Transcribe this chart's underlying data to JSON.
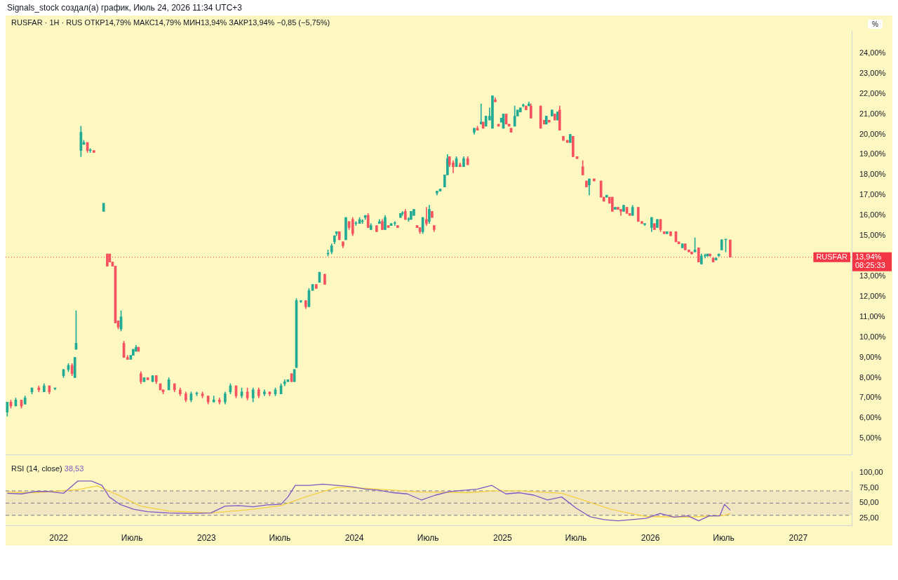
{
  "chart_data": [
    {
      "type": "candlestick",
      "title": "RUSFAR · 1H · RUS ОТКР14,79% МАКС14,79% МИН13,94% ЗАКР13,94% −0,85 (−5,75%)",
      "ylabel": "%",
      "annotations": [
        "Signals_stock создал(а) график, Июль 24, 2026 11:34 UTC+3",
        "RUSFAR",
        "08:25:33"
      ],
      "x": [
        "2021-08-27",
        "2021-09-05",
        "2021-09-17",
        "2021-10-01",
        "2021-10-10",
        "2021-10-27",
        "2021-11-13",
        "2021-11-26",
        "2021-12-09",
        "2021-12-23",
        "2022-01-13",
        "2022-01-25",
        "2022-02-03",
        "2022-02-10",
        "2022-02-13",
        "2022-02-25",
        "2022-03-04",
        "2022-03-13",
        "2022-03-20",
        "2022-03-29",
        "2022-04-22",
        "2022-05-01",
        "2022-05-07",
        "2022-05-14",
        "2022-05-21",
        "2022-05-28",
        "2022-06-04",
        "2022-06-11",
        "2022-06-20",
        "2022-06-28",
        "2022-07-04",
        "2022-07-11",
        "2022-07-17",
        "2022-07-23",
        "2022-07-31",
        "2022-08-09",
        "2022-08-21",
        "2022-08-30",
        "2022-09-09",
        "2022-09-16",
        "2022-09-30",
        "2022-10-14",
        "2022-10-28",
        "2022-11-11",
        "2022-11-24",
        "2022-12-08",
        "2022-12-22",
        "2023-01-05",
        "2023-01-19",
        "2023-02-02",
        "2023-02-16",
        "2023-03-01",
        "2023-03-15",
        "2023-03-29",
        "2023-04-12",
        "2023-04-26",
        "2023-05-10",
        "2023-05-24",
        "2023-06-06",
        "2023-06-20",
        "2023-07-04",
        "2023-07-13",
        "2023-07-21",
        "2023-07-30",
        "2023-08-06",
        "2023-08-11",
        "2023-08-22",
        "2023-09-03",
        "2023-09-11",
        "2023-09-20",
        "2023-09-29",
        "2023-10-07",
        "2023-10-20",
        "2023-10-28",
        "2023-11-06",
        "2023-11-13",
        "2023-11-18",
        "2023-11-25",
        "2023-12-04",
        "2023-12-11",
        "2023-12-19",
        "2023-12-28",
        "2024-01-05",
        "2024-01-14",
        "2024-01-21",
        "2024-01-28",
        "2024-02-04",
        "2024-02-11",
        "2024-02-25",
        "2024-03-03",
        "2024-03-10",
        "2024-03-17",
        "2024-03-25",
        "2024-04-01",
        "2024-04-10",
        "2024-04-17",
        "2024-04-24",
        "2024-04-29",
        "2024-05-06",
        "2024-05-14",
        "2024-05-20",
        "2024-05-27",
        "2024-06-04",
        "2024-06-11",
        "2024-06-18",
        "2024-06-27",
        "2024-07-04",
        "2024-07-11",
        "2024-07-16",
        "2024-07-23",
        "2024-07-31",
        "2024-08-11",
        "2024-08-18",
        "2024-08-23",
        "2024-09-01",
        "2024-09-09",
        "2024-09-18",
        "2024-09-27",
        "2024-10-07",
        "2024-10-23",
        "2024-10-31",
        "2024-11-09",
        "2024-11-14",
        "2024-11-21",
        "2024-11-30",
        "2024-12-07",
        "2024-12-14",
        "2024-12-22",
        "2024-12-29",
        "2025-01-03",
        "2025-01-10",
        "2025-01-17",
        "2025-01-22",
        "2025-01-31",
        "2025-02-07",
        "2025-02-14",
        "2025-02-21",
        "2025-02-28",
        "2025-03-07",
        "2025-03-12",
        "2025-04-05",
        "2025-04-14",
        "2025-04-19",
        "2025-04-26",
        "2025-05-03",
        "2025-05-10",
        "2025-05-17",
        "2025-05-22",
        "2025-05-31",
        "2025-06-10",
        "2025-06-17",
        "2025-06-24",
        "2025-07-04",
        "2025-07-18",
        "2025-07-27",
        "2025-08-03",
        "2025-08-15",
        "2025-09-01",
        "2025-09-08",
        "2025-09-15",
        "2025-09-22",
        "2025-09-29",
        "2025-10-06",
        "2025-10-13",
        "2025-10-20",
        "2025-10-27",
        "2025-11-04",
        "2025-11-11",
        "2025-11-18",
        "2025-12-02",
        "2025-12-11",
        "2025-12-18",
        "2026-01-04",
        "2026-01-11",
        "2026-01-18",
        "2026-01-26",
        "2026-02-04",
        "2026-02-11",
        "2026-02-20",
        "2026-03-05",
        "2026-03-12",
        "2026-03-21",
        "2026-03-28",
        "2026-04-06",
        "2026-04-13",
        "2026-04-21",
        "2026-04-30",
        "2026-05-07",
        "2026-05-16",
        "2026-05-22",
        "2026-05-28",
        "2026-06-05",
        "2026-06-12",
        "2026-06-19",
        "2026-06-26",
        "2026-07-06",
        "2026-07-17"
      ],
      "ohlc": [
        [
          6.3,
          6.8,
          6.1,
          6.8
        ],
        [
          6.8,
          6.9,
          6.5,
          6.6
        ],
        [
          6.6,
          7.0,
          6.6,
          6.9
        ],
        [
          6.9,
          6.9,
          6.5,
          6.6
        ],
        [
          6.7,
          7.1,
          6.7,
          7.0
        ],
        [
          7.3,
          7.5,
          7.2,
          7.5
        ],
        [
          7.5,
          7.6,
          7.3,
          7.4
        ],
        [
          7.3,
          7.7,
          7.3,
          7.6
        ],
        [
          7.6,
          7.6,
          7.2,
          7.3
        ],
        [
          7.45,
          7.5,
          7.4,
          7.5
        ],
        [
          8.1,
          8.4,
          8.0,
          8.4
        ],
        [
          8.4,
          8.7,
          8.3,
          8.6
        ],
        [
          8.6,
          8.7,
          8.1,
          8.2
        ],
        [
          8.0,
          9.0,
          8.0,
          9.0
        ],
        [
          9.4,
          11.3,
          9.4,
          9.7
        ],
        [
          19.2,
          20.4,
          18.9,
          20.1
        ],
        [
          19.5,
          19.7,
          19.5,
          19.6
        ],
        [
          19.6,
          19.6,
          19.1,
          19.2
        ],
        [
          19.2,
          19.3,
          19.1,
          19.2
        ],
        [
          19.2,
          19.2,
          19.1,
          19.1
        ],
        [
          16.2,
          16.6,
          16.2,
          16.6
        ],
        [
          14.1,
          14.1,
          13.5,
          13.5
        ],
        [
          14.1,
          14.1,
          13.7,
          13.7
        ],
        [
          13.7,
          13.7,
          13.5,
          13.5
        ],
        [
          13.5,
          13.5,
          10.7,
          10.7
        ],
        [
          10.8,
          10.8,
          10.4,
          10.5
        ],
        [
          10.4,
          11.3,
          10.3,
          11.0
        ],
        [
          9.7,
          9.8,
          9.0,
          9.0
        ],
        [
          9.0,
          9.1,
          8.9,
          8.9
        ],
        [
          8.9,
          9.1,
          8.9,
          9.1
        ],
        [
          9.1,
          9.4,
          9.1,
          9.4
        ],
        [
          9.3,
          9.6,
          9.3,
          9.5
        ],
        [
          9.5,
          9.5,
          9.3,
          9.3
        ],
        [
          8.2,
          8.3,
          7.7,
          7.8
        ],
        [
          7.8,
          8.0,
          7.8,
          8.0
        ],
        [
          8.0,
          8.0,
          7.9,
          7.9
        ],
        [
          7.8,
          8.1,
          7.8,
          8.1
        ],
        [
          8.1,
          8.1,
          7.7,
          7.8
        ],
        [
          7.7,
          7.7,
          7.4,
          7.4
        ],
        [
          7.4,
          7.4,
          7.2,
          7.3
        ],
        [
          7.4,
          8.0,
          7.4,
          7.9
        ],
        [
          7.7,
          7.7,
          7.3,
          7.4
        ],
        [
          7.4,
          7.5,
          7.1,
          7.2
        ],
        [
          7.2,
          7.3,
          6.8,
          6.9
        ],
        [
          6.9,
          7.3,
          6.8,
          7.2
        ],
        [
          7.2,
          7.3,
          7.1,
          7.2
        ],
        [
          7.2,
          7.3,
          7.0,
          7.1
        ],
        [
          7.1,
          7.1,
          6.7,
          6.8
        ],
        [
          6.8,
          7.1,
          6.8,
          6.9
        ],
        [
          6.9,
          7.0,
          6.7,
          6.8
        ],
        [
          6.8,
          7.3,
          6.7,
          7.2
        ],
        [
          7.3,
          7.7,
          7.2,
          7.6
        ],
        [
          7.6,
          7.6,
          7.0,
          7.1
        ],
        [
          7.1,
          7.5,
          7.0,
          7.3
        ],
        [
          7.3,
          7.5,
          6.9,
          7.0
        ],
        [
          7.0,
          7.5,
          6.8,
          7.4
        ],
        [
          7.4,
          7.5,
          7.0,
          7.1
        ],
        [
          7.2,
          7.4,
          7.1,
          7.3
        ],
        [
          7.3,
          7.3,
          7.1,
          7.2
        ],
        [
          7.2,
          7.5,
          7.1,
          7.4
        ],
        [
          7.2,
          7.7,
          7.2,
          7.6
        ],
        [
          7.7,
          7.9,
          7.6,
          7.8
        ],
        [
          7.8,
          7.9,
          7.8,
          7.9
        ],
        [
          8.2,
          8.2,
          7.8,
          7.8
        ],
        [
          7.8,
          8.4,
          7.8,
          8.4
        ],
        [
          8.5,
          11.9,
          8.5,
          11.8
        ],
        [
          11.75,
          11.8,
          11.7,
          11.8
        ],
        [
          11.8,
          11.8,
          11.4,
          11.5
        ],
        [
          11.5,
          12.4,
          11.5,
          12.3
        ],
        [
          12.3,
          12.6,
          12.3,
          12.6
        ],
        [
          12.6,
          12.6,
          12.4,
          12.4
        ],
        [
          12.7,
          13.2,
          12.7,
          13.2
        ],
        [
          13.1,
          13.1,
          12.6,
          12.6
        ],
        [
          14.1,
          14.3,
          14.0,
          14.1
        ],
        [
          14.2,
          14.6,
          14.1,
          14.5
        ],
        [
          14.7,
          15.0,
          14.6,
          15.0
        ],
        [
          15.1,
          15.2,
          15.0,
          15.2
        ],
        [
          15.2,
          15.2,
          14.8,
          14.8
        ],
        [
          14.7,
          14.7,
          14.4,
          14.5
        ],
        [
          14.8,
          15.9,
          14.8,
          15.9
        ],
        [
          15.7,
          15.7,
          15.3,
          15.4
        ],
        [
          15.8,
          15.9,
          15.0,
          15.1
        ],
        [
          15.6,
          15.7,
          15.5,
          15.6
        ],
        [
          15.6,
          15.9,
          15.6,
          15.8
        ],
        [
          15.7,
          15.8,
          15.6,
          15.7
        ],
        [
          15.9,
          16.0,
          15.8,
          16.0
        ],
        [
          16.0,
          16.1,
          15.4,
          15.4
        ],
        [
          15.3,
          15.6,
          15.3,
          15.5
        ],
        [
          15.5,
          15.5,
          15.2,
          15.2
        ],
        [
          15.6,
          15.8,
          15.6,
          15.7
        ],
        [
          15.7,
          15.8,
          15.3,
          15.3
        ],
        [
          15.3,
          16.0,
          15.3,
          15.9
        ],
        [
          15.5,
          15.5,
          15.4,
          15.4
        ],
        [
          15.5,
          15.6,
          15.5,
          15.6
        ],
        [
          15.6,
          15.7,
          15.5,
          15.6
        ],
        [
          15.5,
          15.5,
          15.4,
          15.4
        ],
        [
          15.9,
          16.1,
          15.9,
          16.1
        ],
        [
          16.1,
          16.2,
          16.0,
          16.1
        ],
        [
          16.2,
          16.3,
          15.8,
          15.8
        ],
        [
          15.8,
          15.9,
          15.7,
          15.8
        ],
        [
          15.8,
          16.2,
          15.8,
          16.2
        ],
        [
          16.0,
          16.3,
          16.0,
          16.3
        ],
        [
          15.5,
          15.5,
          15.4,
          15.4
        ],
        [
          15.4,
          15.4,
          15.1,
          15.2
        ],
        [
          15.2,
          15.9,
          15.1,
          15.9
        ],
        [
          15.8,
          16.4,
          15.5,
          15.6
        ],
        [
          15.7,
          16.5,
          15.6,
          16.3
        ],
        [
          16.2,
          16.2,
          15.9,
          15.9
        ],
        [
          15.5,
          15.5,
          15.2,
          15.3
        ],
        [
          17.1,
          17.2,
          17.0,
          17.2
        ],
        [
          17.2,
          17.3,
          17.2,
          17.3
        ],
        [
          17.4,
          18.0,
          17.4,
          18.0
        ],
        [
          18.0,
          19.0,
          18.0,
          18.8
        ],
        [
          18.9,
          18.9,
          18.4,
          18.5
        ],
        [
          18.6,
          18.7,
          18.1,
          18.4
        ],
        [
          18.4,
          18.9,
          18.4,
          18.8
        ],
        [
          18.5,
          18.6,
          18.4,
          18.4
        ],
        [
          18.4,
          18.9,
          18.4,
          18.8
        ],
        [
          18.8,
          18.9,
          18.5,
          18.5
        ],
        [
          20.1,
          20.3,
          20.0,
          20.3
        ],
        [
          20.3,
          20.4,
          20.2,
          20.2
        ],
        [
          20.5,
          21.5,
          20.5,
          20.6
        ],
        [
          20.6,
          20.6,
          20.3,
          20.3
        ],
        [
          20.4,
          20.9,
          20.4,
          20.9
        ],
        [
          20.7,
          21.3,
          20.7,
          20.9
        ],
        [
          20.3,
          21.9,
          20.3,
          21.9
        ],
        [
          21.7,
          21.8,
          21.6,
          21.6
        ],
        [
          20.5,
          20.5,
          20.4,
          20.4
        ],
        [
          20.6,
          20.8,
          20.6,
          20.8
        ],
        [
          20.3,
          21.0,
          20.3,
          21.0
        ],
        [
          21.0,
          21.0,
          20.5,
          20.5
        ],
        [
          20.5,
          20.5,
          20.4,
          20.4
        ],
        [
          20.3,
          20.3,
          20.1,
          20.1
        ],
        [
          20.4,
          21.4,
          20.4,
          20.9
        ],
        [
          20.9,
          21.2,
          20.9,
          21.2
        ],
        [
          21.1,
          21.3,
          21.1,
          21.3
        ],
        [
          21.4,
          21.5,
          21.35,
          21.45
        ],
        [
          21.4,
          21.4,
          21.2,
          21.2
        ],
        [
          21.4,
          21.6,
          21.4,
          21.5
        ],
        [
          21.4,
          21.5,
          20.8,
          20.8
        ],
        [
          21.4,
          21.4,
          20.3,
          20.3
        ],
        [
          20.7,
          20.7,
          20.5,
          20.5
        ],
        [
          20.5,
          20.9,
          20.5,
          20.9
        ],
        [
          20.7,
          20.7,
          20.6,
          20.6
        ],
        [
          20.9,
          21.2,
          20.9,
          21.2
        ],
        [
          21.0,
          21.0,
          20.7,
          20.7
        ],
        [
          20.7,
          21.1,
          20.7,
          21.1
        ],
        [
          21.2,
          21.4,
          20.2,
          20.2
        ],
        [
          19.9,
          19.9,
          19.7,
          19.7
        ],
        [
          19.7,
          19.7,
          19.6,
          19.6
        ],
        [
          19.6,
          20.0,
          19.6,
          20.0
        ],
        [
          19.9,
          19.9,
          18.9,
          18.9
        ],
        [
          18.9,
          18.9,
          18.8,
          18.8
        ],
        [
          18.4,
          18.7,
          18.0,
          18.0
        ],
        [
          17.7,
          17.7,
          17.4,
          17.4
        ],
        [
          17.5,
          17.8,
          17.0,
          17.8
        ],
        [
          17.8,
          17.8,
          17.7,
          17.7
        ],
        [
          17.7,
          17.7,
          16.9,
          16.9
        ],
        [
          16.9,
          16.9,
          16.7,
          16.7
        ],
        [
          16.9,
          17.0,
          16.9,
          17.0
        ],
        [
          16.9,
          16.9,
          16.6,
          16.6
        ],
        [
          16.9,
          16.9,
          16.2,
          16.2
        ],
        [
          16.3,
          16.4,
          16.3,
          16.4
        ],
        [
          16.4,
          16.4,
          16.3,
          16.3
        ],
        [
          16.3,
          16.3,
          16.0,
          16.2
        ],
        [
          16.2,
          16.5,
          16.2,
          16.5
        ],
        [
          16.4,
          16.4,
          16.1,
          16.1
        ],
        [
          16.1,
          16.1,
          16.0,
          16.0
        ],
        [
          16.0,
          16.5,
          16.0,
          16.4
        ],
        [
          16.4,
          16.4,
          15.7,
          15.7
        ],
        [
          15.7,
          15.7,
          15.6,
          15.6
        ],
        [
          15.55,
          15.6,
          15.5,
          15.6
        ],
        [
          15.4,
          15.9,
          15.2,
          15.9
        ],
        [
          15.6,
          15.6,
          15.3,
          15.3
        ],
        [
          15.4,
          15.8,
          15.4,
          15.8
        ],
        [
          15.8,
          15.8,
          15.2,
          15.3
        ],
        [
          15.2,
          15.2,
          15.1,
          15.1
        ],
        [
          15.1,
          15.2,
          15.1,
          15.2
        ],
        [
          15.2,
          15.2,
          15.0,
          15.0
        ],
        [
          15.2,
          15.2,
          14.7,
          14.7
        ],
        [
          14.7,
          14.7,
          14.6,
          14.6
        ],
        [
          14.4,
          14.6,
          14.4,
          14.6
        ],
        [
          14.6,
          14.6,
          14.3,
          14.3
        ],
        [
          14.3,
          14.3,
          14.2,
          14.2
        ],
        [
          14.2,
          14.2,
          14.1,
          14.1
        ],
        [
          14.2,
          14.9,
          14.2,
          14.3
        ],
        [
          14.4,
          14.4,
          13.7,
          13.7
        ],
        [
          13.6,
          14.1,
          13.6,
          14.0
        ],
        [
          14.0,
          14.1,
          13.9,
          14.0
        ],
        [
          14.0,
          14.1,
          14.0,
          14.1
        ],
        [
          14.1,
          14.1,
          14.0,
          14.0
        ],
        [
          13.9,
          13.9,
          13.7,
          13.7
        ],
        [
          13.8,
          13.9,
          13.8,
          13.9
        ],
        [
          14.0,
          14.1,
          14.0,
          14.1
        ],
        [
          14.3,
          14.8,
          14.3,
          14.8
        ],
        [
          14.8,
          14.8,
          14.2,
          14.8
        ],
        [
          14.79,
          14.79,
          13.94,
          13.94
        ]
      ],
      "colors": [
        "#22ab94",
        "#f7525f",
        "#22ab94",
        "#f7525f",
        "#22ab94",
        "#22ab94",
        "#f7525f",
        "#22ab94",
        "#f7525f",
        "#22ab94",
        "#22ab94",
        "#22ab94",
        "#f7525f",
        "#22ab94",
        "#22ab94",
        "#22ab94",
        "#22ab94",
        "#f7525f",
        "#22ab94",
        "#f7525f",
        "#22ab94",
        "#f7525f",
        "#f7525f",
        "#f7525f",
        "#f7525f",
        "#f7525f",
        "#22ab94",
        "#f7525f",
        "#f7525f",
        "#22ab94",
        "#22ab94",
        "#22ab94",
        "#f7525f",
        "#f7525f",
        "#22ab94",
        "#f7525f",
        "#22ab94",
        "#f7525f",
        "#f7525f",
        "#f7525f",
        "#22ab94",
        "#f7525f",
        "#f7525f",
        "#f7525f",
        "#22ab94",
        "#22ab94",
        "#f7525f",
        "#f7525f",
        "#22ab94",
        "#f7525f",
        "#22ab94",
        "#22ab94",
        "#f7525f",
        "#22ab94",
        "#f7525f",
        "#22ab94",
        "#f7525f",
        "#22ab94",
        "#f7525f",
        "#22ab94",
        "#22ab94",
        "#22ab94",
        "#22ab94",
        "#f7525f",
        "#22ab94",
        "#22ab94",
        "#22ab94",
        "#f7525f",
        "#22ab94",
        "#22ab94",
        "#f7525f",
        "#22ab94",
        "#f7525f",
        "#22ab94",
        "#22ab94",
        "#22ab94",
        "#22ab94",
        "#f7525f",
        "#f7525f",
        "#22ab94",
        "#f7525f",
        "#f7525f",
        "#22ab94",
        "#22ab94",
        "#22ab94",
        "#22ab94",
        "#f7525f",
        "#22ab94",
        "#f7525f",
        "#22ab94",
        "#f7525f",
        "#22ab94",
        "#f7525f",
        "#22ab94",
        "#22ab94",
        "#f7525f",
        "#22ab94",
        "#22ab94",
        "#f7525f",
        "#22ab94",
        "#22ab94",
        "#22ab94",
        "#f7525f",
        "#f7525f",
        "#22ab94",
        "#f7525f",
        "#22ab94",
        "#f7525f",
        "#f7525f",
        "#22ab94",
        "#22ab94",
        "#22ab94",
        "#22ab94",
        "#f7525f",
        "#f7525f",
        "#22ab94",
        "#f7525f",
        "#22ab94",
        "#f7525f",
        "#22ab94",
        "#f7525f",
        "#22ab94",
        "#f7525f",
        "#22ab94",
        "#22ab94",
        "#22ab94",
        "#f7525f",
        "#f7525f",
        "#22ab94",
        "#22ab94",
        "#f7525f",
        "#f7525f",
        "#f7525f",
        "#22ab94",
        "#22ab94",
        "#22ab94",
        "#22ab94",
        "#f7525f",
        "#22ab94",
        "#f7525f",
        "#f7525f",
        "#f7525f",
        "#22ab94",
        "#f7525f",
        "#22ab94",
        "#f7525f",
        "#22ab94",
        "#f7525f",
        "#f7525f",
        "#f7525f",
        "#22ab94",
        "#f7525f",
        "#f7525f",
        "#f7525f",
        "#f7525f",
        "#22ab94",
        "#f7525f",
        "#f7525f",
        "#f7525f",
        "#22ab94",
        "#f7525f",
        "#f7525f",
        "#22ab94",
        "#f7525f",
        "#f7525f",
        "#22ab94",
        "#f7525f",
        "#f7525f",
        "#22ab94",
        "#f7525f",
        "#f7525f",
        "#22ab94",
        "#22ab94",
        "#f7525f",
        "#22ab94",
        "#f7525f",
        "#f7525f",
        "#22ab94",
        "#f7525f",
        "#f7525f",
        "#f7525f",
        "#22ab94",
        "#f7525f",
        "#f7525f",
        "#f7525f",
        "#22ab94",
        "#f7525f",
        "#22ab94",
        "#22ab94",
        "#22ab94",
        "#f7525f",
        "#f7525f",
        "#22ab94",
        "#22ab94",
        "#22ab94",
        "#22ab94",
        "#f7525f"
      ],
      "xlim": [
        "2021-08-23",
        "2027-05-13"
      ],
      "ylim": [
        4.2,
        25.1
      ],
      "yticks": [
        {
          "value": 5,
          "label": "5,00%"
        },
        {
          "value": 6,
          "label": "6,00%"
        },
        {
          "value": 7,
          "label": "7,00%"
        },
        {
          "value": 8,
          "label": "8,00%"
        },
        {
          "value": 9,
          "label": "9,00%"
        },
        {
          "value": 10,
          "label": "10,00%"
        },
        {
          "value": 11,
          "label": "11,00%"
        },
        {
          "value": 12,
          "label": "12,00%"
        },
        {
          "value": 13,
          "label": "13,00%"
        },
        {
          "value": 14,
          "label": null
        },
        {
          "value": 15,
          "label": "15,00%"
        },
        {
          "value": 16,
          "label": "16,00%"
        },
        {
          "value": 17,
          "label": "17,00%"
        },
        {
          "value": 18,
          "label": "18,00%"
        },
        {
          "value": 19,
          "label": "19,00%"
        },
        {
          "value": 20,
          "label": "20,00%"
        },
        {
          "value": 21,
          "label": "21,00%"
        },
        {
          "value": 22,
          "label": "22,00%"
        },
        {
          "value": 23,
          "label": "23,00%"
        },
        {
          "value": 24,
          "label": "24,00%"
        }
      ],
      "ref_lines": [
        {
          "axis": "y",
          "value": 13.94,
          "label": "13,94%",
          "color": "#f23645",
          "line_style": "dotted"
        }
      ],
      "tick_labels": "y",
      "grid": false,
      "legend": false
    },
    {
      "type": "line",
      "title": "RSI (14, close)",
      "annotations": [
        "38,53"
      ],
      "series": [
        {
          "color": "#7e57c2",
          "x": [
            "2021-08-27",
            "2021-10-01",
            "2021-11-05",
            "2021-12-09",
            "2022-01-13",
            "2022-02-17",
            "2022-03-23",
            "2022-04-18",
            "2022-05-06",
            "2022-06-01",
            "2022-07-05",
            "2022-08-09",
            "2022-09-30",
            "2022-11-21",
            "2023-01-12",
            "2023-02-16",
            "2023-03-22",
            "2023-04-26",
            "2023-05-31",
            "2023-07-04",
            "2023-07-21",
            "2023-08-08",
            "2023-09-11",
            "2023-10-16",
            "2023-11-20",
            "2023-12-24",
            "2024-01-28",
            "2024-03-03",
            "2024-04-06",
            "2024-05-11",
            "2024-06-15",
            "2024-07-19",
            "2024-08-23",
            "2024-09-27",
            "2024-10-31",
            "2024-12-05",
            "2025-01-09",
            "2025-02-12",
            "2025-03-19",
            "2025-04-22",
            "2025-05-27",
            "2025-07-01",
            "2025-08-04",
            "2025-09-08",
            "2025-10-13",
            "2025-11-16",
            "2025-12-21",
            "2026-01-25",
            "2026-02-28",
            "2026-04-04",
            "2026-04-30",
            "2026-05-26",
            "2026-06-21",
            "2026-07-03",
            "2026-07-17"
          ],
          "values": [
            66,
            65,
            69,
            69,
            66,
            86,
            86,
            79,
            60,
            48,
            40,
            36,
            34,
            33,
            34,
            45,
            46,
            44,
            47,
            48,
            60,
            79,
            79,
            81,
            79,
            77,
            73,
            71,
            67,
            65,
            55,
            63,
            69,
            71,
            73,
            79,
            65,
            67,
            63,
            55,
            60,
            42,
            28,
            23,
            21,
            23,
            25,
            33,
            27,
            29,
            21,
            29,
            29,
            48,
            38.53
          ]
        },
        {
          "color": "#f5d142",
          "x": [
            "2021-08-27",
            "2021-11-05",
            "2022-02-17",
            "2022-04-06",
            "2022-06-01",
            "2022-07-22",
            "2022-09-30",
            "2023-01-12",
            "2023-04-26",
            "2023-07-04",
            "2023-09-11",
            "2023-11-20",
            "2024-02-01",
            "2024-06-15",
            "2024-10-11",
            "2024-12-05",
            "2025-02-12",
            "2025-05-27",
            "2025-07-18",
            "2025-09-25",
            "2025-12-21",
            "2026-04-04",
            "2026-07-03",
            "2026-07-17"
          ],
          "values": [
            68,
            67,
            72,
            78,
            62,
            45,
            37,
            34,
            40,
            46,
            62,
            76,
            74,
            68,
            67,
            70,
            70,
            66,
            55,
            40,
            28,
            27,
            30,
            33
          ]
        }
      ],
      "xlim": [
        "2021-08-23",
        "2027-05-13"
      ],
      "xticks": [
        {
          "value": "2022-01-01",
          "label": "2022"
        },
        {
          "value": "2022-07-01",
          "label": "Июль"
        },
        {
          "value": "2023-01-01",
          "label": "2023"
        },
        {
          "value": "2023-07-01",
          "label": "Июль"
        },
        {
          "value": "2024-01-01",
          "label": "2024"
        },
        {
          "value": "2024-07-01",
          "label": "Июль"
        },
        {
          "value": "2025-01-01",
          "label": "2025"
        },
        {
          "value": "2025-07-01",
          "label": "Июль"
        },
        {
          "value": "2026-01-01",
          "label": "2026"
        },
        {
          "value": "2026-07-01",
          "label": "Июль"
        },
        {
          "value": "2027-01-01",
          "label": "2027"
        }
      ],
      "ylim": [
        13,
        102
      ],
      "yticks": [
        {
          "value": 25,
          "label": "25,00"
        },
        {
          "value": 50,
          "label": "50,00"
        },
        {
          "value": 75,
          "label": "75,00"
        },
        {
          "value": 100,
          "label": "100,00"
        }
      ],
      "ref_lines": [
        {
          "axis": "y",
          "value": 70,
          "color": "#787b86",
          "line_style": "dashed"
        },
        {
          "axis": "y",
          "value": 50,
          "color": "#787b86",
          "line_style": "dashed"
        },
        {
          "axis": "y",
          "value": 30,
          "color": "#787b86",
          "line_style": "dashed"
        }
      ],
      "bands": [
        {
          "axis": "y",
          "from": 30,
          "to": 70,
          "color": "#7e57c2"
        }
      ],
      "grid": false,
      "legend": false
    }
  ]
}
